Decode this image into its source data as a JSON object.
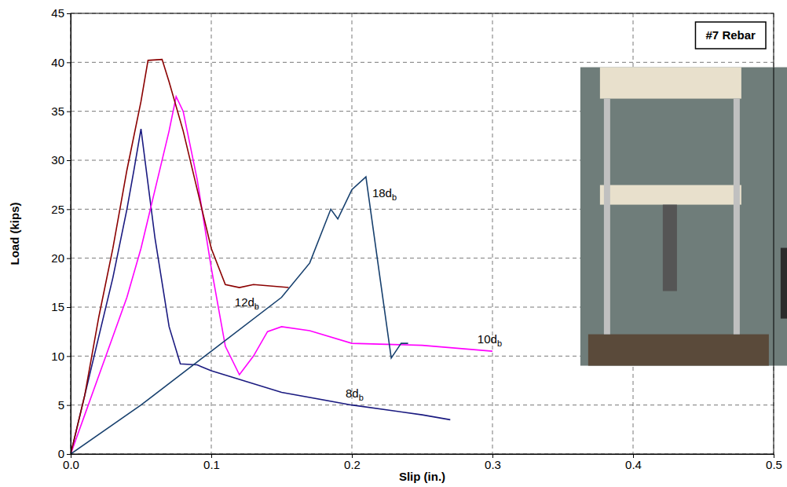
{
  "chart_data": {
    "type": "line",
    "x_label": "Slip (in.)",
    "y_label": "Load (kips)",
    "annotations": [
      "#7 Rebar"
    ],
    "xlim": [
      0,
      0.5
    ],
    "xticks": [
      {
        "value": 0,
        "label": "0.0"
      },
      0.1,
      0.2,
      0.3,
      0.4,
      0.5
    ],
    "ylim": [
      0,
      45
    ],
    "yticks": [
      0,
      5,
      10,
      15,
      20,
      25,
      30,
      35,
      40,
      45
    ],
    "grid": true,
    "series": [
      {
        "name": "8db",
        "color": "#1a1a80",
        "x": [
          0,
          0.01,
          0.02,
          0.03,
          0.04,
          0.045,
          0.05,
          0.06,
          0.07,
          0.078,
          0.09,
          0.1,
          0.15,
          0.2,
          0.25,
          0.27
        ],
        "values": [
          0,
          6,
          12,
          18,
          25,
          29,
          33.2,
          22,
          13,
          9.2,
          9.1,
          8.5,
          6.3,
          5,
          4,
          3.5
        ]
      },
      {
        "name": "10db",
        "color": "#ff00ff",
        "x": [
          0,
          0.01,
          0.02,
          0.03,
          0.04,
          0.05,
          0.06,
          0.07,
          0.075,
          0.08,
          0.09,
          0.1,
          0.11,
          0.12,
          0.13,
          0.14,
          0.15,
          0.17,
          0.2,
          0.25,
          0.3
        ],
        "values": [
          0,
          4,
          8,
          12,
          16,
          21,
          27,
          33,
          36.5,
          35,
          28,
          19,
          11,
          8.1,
          10,
          12.5,
          13,
          12.6,
          11.3,
          11.1,
          10.5
        ]
      },
      {
        "name": "12db",
        "color": "#8b0000",
        "x": [
          0,
          0.01,
          0.02,
          0.03,
          0.04,
          0.05,
          0.055,
          0.065,
          0.07,
          0.08,
          0.09,
          0.1,
          0.11,
          0.12,
          0.13,
          0.155
        ],
        "values": [
          0,
          6,
          14,
          21,
          29,
          36,
          40.2,
          40.3,
          38,
          33,
          27,
          21,
          17.3,
          17,
          17.3,
          17
        ]
      },
      {
        "name": "18db",
        "color": "#17406e",
        "x": [
          0,
          0.05,
          0.1,
          0.15,
          0.17,
          0.185,
          0.19,
          0.2,
          0.21,
          0.22,
          0.228,
          0.235,
          0.24
        ],
        "values": [
          0,
          5,
          10.5,
          16,
          19.5,
          25,
          24,
          27,
          28.3,
          18,
          9.8,
          11.3,
          11.3
        ]
      }
    ]
  }
}
